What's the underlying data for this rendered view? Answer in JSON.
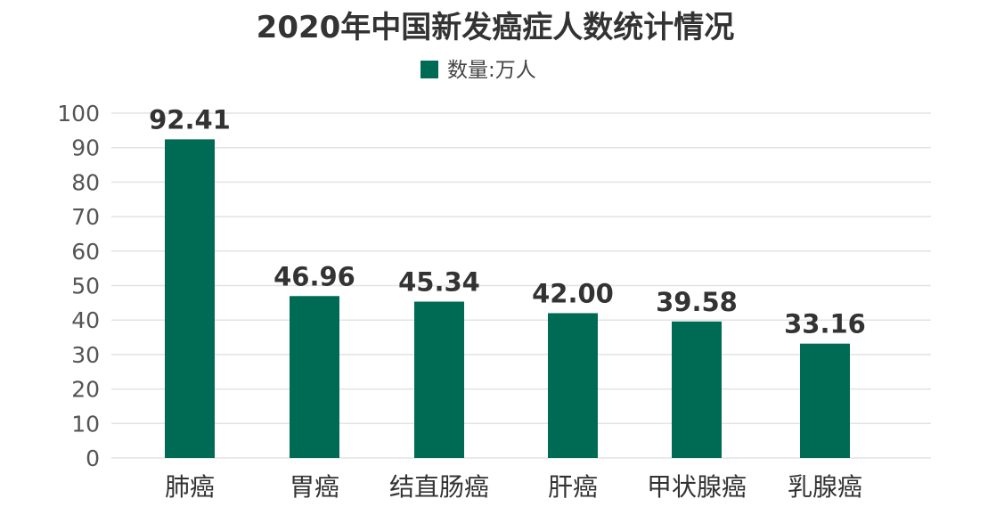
{
  "chart_data": {
    "type": "bar",
    "title": "2020年中国新发癌症人数统计情况",
    "categories": [
      "肺癌",
      "胃癌",
      "结直肠癌",
      "肝癌",
      "甲状腺癌",
      "乳腺癌"
    ],
    "series": [
      {
        "name": "数量:万人",
        "values": [
          92.41,
          46.96,
          45.34,
          42.0,
          39.58,
          33.16
        ],
        "labels": [
          "92.41",
          "46.96",
          "45.34",
          "42.00",
          "39.58",
          "33.16"
        ]
      }
    ],
    "yticks": [
      "0",
      "10",
      "20",
      "30",
      "40",
      "50",
      "60",
      "70",
      "80",
      "90",
      "100"
    ],
    "ylim": [
      0,
      100
    ],
    "xlabel": "",
    "ylabel": "",
    "grid": true,
    "legend": "top-center",
    "bar_color": "#006b54"
  }
}
